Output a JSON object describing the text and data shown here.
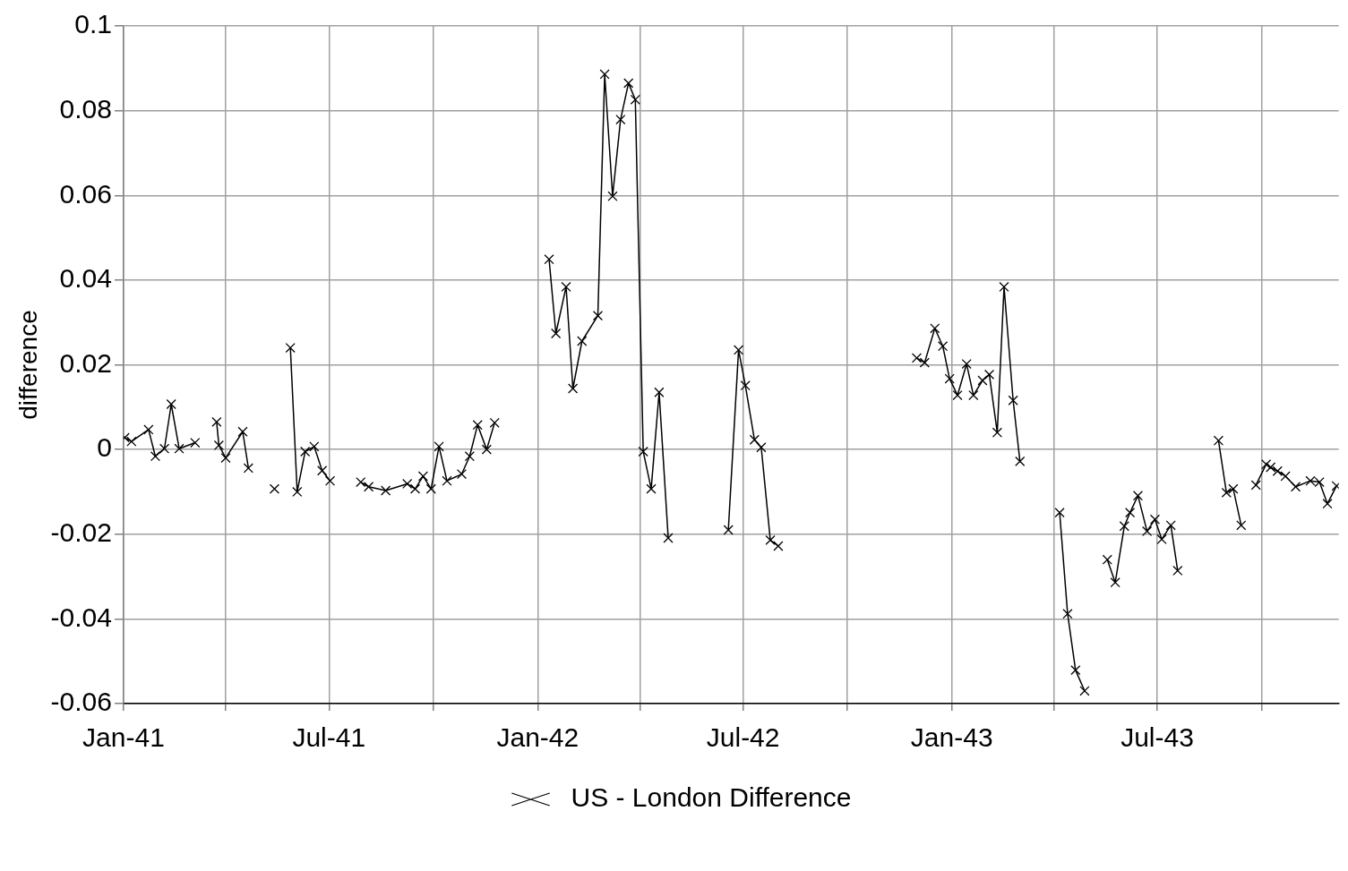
{
  "chart_data": {
    "type": "line",
    "ylabel": "difference",
    "legend": "bottom",
    "grid": true,
    "marker": "cross",
    "line_style": "solid",
    "xlim": [
      "1941-01-01",
      "1943-12-08"
    ],
    "xticks": [
      {
        "value": "1941-01-01",
        "label": "Jan-41"
      },
      {
        "value": "1941-04-01",
        "label": null
      },
      {
        "value": "1941-07-01",
        "label": "Jul-41"
      },
      {
        "value": "1941-10-01",
        "label": null
      },
      {
        "value": "1942-01-01",
        "label": "Jan-42"
      },
      {
        "value": "1942-04-01",
        "label": null
      },
      {
        "value": "1942-07-01",
        "label": "Jul-42"
      },
      {
        "value": "1942-10-01",
        "label": null
      },
      {
        "value": "1943-01-01",
        "label": "Jan-43"
      },
      {
        "value": "1943-04-01",
        "label": null
      },
      {
        "value": "1943-07-01",
        "label": "Jul-43"
      },
      {
        "value": "1943-10-01",
        "label": null
      }
    ],
    "ylim": [
      -0.06,
      0.1
    ],
    "yticks": [
      -0.06,
      -0.04,
      -0.02,
      0,
      0.02,
      0.04,
      0.06,
      0.08,
      0.1
    ],
    "series": [
      {
        "name": "US - London Difference",
        "color": "#000000",
        "x": [
          "1941-01-02",
          "1941-01-08",
          "1941-01-23",
          "1941-01-29",
          "1941-02-06",
          "1941-02-12",
          "1941-02-19",
          "1941-03-05",
          "1941-03-13",
          "1941-03-24",
          "1941-03-26",
          "1941-04-01",
          "1941-04-16",
          "1941-04-21",
          "1941-05-02",
          "1941-05-14",
          "1941-05-21",
          "1941-05-28",
          "1941-06-03",
          "1941-06-10",
          "1941-06-18",
          "1941-06-25",
          "1941-07-02",
          "1941-07-15",
          "1941-07-29",
          "1941-08-05",
          "1941-08-20",
          "1941-09-08",
          "1941-09-15",
          "1941-09-22",
          "1941-09-29",
          "1941-10-06",
          "1941-10-13",
          "1941-10-26",
          "1941-11-02",
          "1941-11-09",
          "1941-11-17",
          "1941-11-24",
          "1941-12-18",
          "1942-01-11",
          "1942-01-17",
          "1942-01-26",
          "1942-02-01",
          "1942-02-09",
          "1942-02-23",
          "1942-03-01",
          "1942-03-08",
          "1942-03-15",
          "1942-03-22",
          "1942-03-28",
          "1942-04-04",
          "1942-04-11",
          "1942-04-18",
          "1942-04-26",
          "1942-05-22",
          "1942-06-18",
          "1942-06-27",
          "1942-07-03",
          "1942-07-11",
          "1942-07-17",
          "1942-07-25",
          "1942-08-01",
          "1942-10-02",
          "1942-12-01",
          "1942-12-08",
          "1942-12-17",
          "1942-12-24",
          "1942-12-30",
          "1943-01-06",
          "1943-01-14",
          "1943-01-20",
          "1943-01-28",
          "1943-02-03",
          "1943-02-10",
          "1943-02-16",
          "1943-02-24",
          "1943-03-02",
          "1943-03-21",
          "1943-04-06",
          "1943-04-13",
          "1943-04-20",
          "1943-04-28",
          "1943-05-08",
          "1943-05-18",
          "1943-05-25",
          "1943-06-02",
          "1943-06-07",
          "1943-06-14",
          "1943-06-22",
          "1943-06-29",
          "1943-07-05",
          "1943-07-13",
          "1943-07-19",
          "1943-08-06",
          "1943-08-24",
          "1943-08-31",
          "1943-09-06",
          "1943-09-13",
          "1943-09-19",
          "1943-09-26",
          "1943-10-05",
          "1943-10-09",
          "1943-10-15",
          "1943-10-22",
          "1943-10-31",
          "1943-11-13",
          "1943-11-21",
          "1943-11-28",
          "1943-12-06"
        ],
        "values": [
          0.0028,
          0.0019,
          0.0047,
          -0.0016,
          0.0002,
          0.0107,
          0.0002,
          0.0016,
          null,
          0.0065,
          0.001,
          -0.002,
          0.0042,
          -0.0044,
          null,
          -0.0093,
          null,
          0.024,
          -0.01,
          -0.0005,
          0.0007,
          -0.005,
          -0.0074,
          null,
          -0.0077,
          -0.0088,
          -0.0097,
          -0.0081,
          -0.0093,
          -0.0063,
          -0.0093,
          0.0007,
          -0.0074,
          -0.0058,
          -0.0016,
          0.0058,
          0.0,
          0.0063,
          null,
          0.0449,
          0.0274,
          0.0384,
          0.0144,
          0.0256,
          0.0316,
          0.0886,
          0.0598,
          0.0779,
          0.0865,
          0.0826,
          -0.0005,
          -0.0093,
          0.0135,
          -0.0209,
          null,
          -0.019,
          0.0235,
          0.0151,
          0.0023,
          0.0005,
          -0.0214,
          -0.0228,
          null,
          0.0216,
          0.0205,
          0.0286,
          0.0244,
          0.0167,
          0.0128,
          0.0202,
          0.0128,
          0.0163,
          0.0177,
          0.004,
          0.0384,
          0.0116,
          -0.0028,
          null,
          -0.0149,
          -0.0388,
          -0.0521,
          -0.057,
          null,
          -0.026,
          -0.0314,
          -0.0181,
          -0.0149,
          -0.0109,
          -0.0193,
          -0.0165,
          -0.0212,
          -0.0179,
          -0.0286,
          null,
          0.0021,
          -0.0102,
          -0.0093,
          -0.0179,
          null,
          -0.0084,
          -0.0035,
          -0.0042,
          -0.0051,
          -0.0063,
          -0.0088,
          -0.0074,
          -0.0077,
          -0.0128,
          -0.0086
        ]
      }
    ]
  }
}
